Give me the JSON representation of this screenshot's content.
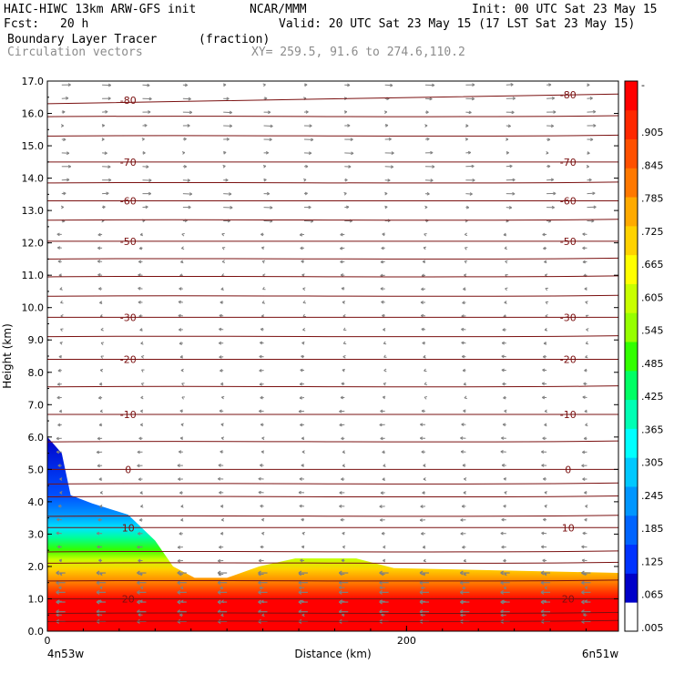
{
  "header": {
    "model": "HAIC-HIWC 13km ARW-GFS init",
    "org": "NCAR/MMM",
    "init": "Init: 00 UTC Sat 23 May 15",
    "fcst_label": "Fcst:",
    "fcst_value": "20 h",
    "valid": "Valid: 20 UTC Sat 23 May 15 (17 LST Sat 23 May 15)",
    "field": "Boundary Layer Tracer",
    "field_units": "(fraction)",
    "overlay": "Circulation vectors",
    "xy_range": "XY= 259.5, 91.6 to 274.6,110.2"
  },
  "colors": {
    "contour_line": "#7a1010",
    "vector": "#808080",
    "colorbar": [
      "#ffffff",
      "#0000c8",
      "#0032ff",
      "#0064ff",
      "#0096ff",
      "#00c8ff",
      "#00ffff",
      "#00ffb4",
      "#00ff64",
      "#32ff00",
      "#96ff00",
      "#c8ff00",
      "#ffff00",
      "#ffd200",
      "#ffaa00",
      "#ff7800",
      "#ff5000",
      "#ff2800",
      "#ff0000"
    ]
  },
  "chart_data": {
    "type": "heatmap",
    "title": "Boundary Layer Tracer",
    "units": "(fraction)",
    "xlabel": "Distance (km)",
    "ylabel": "Height (km)",
    "xlim": [
      0,
      318
    ],
    "ylim": [
      0.0,
      17.0
    ],
    "x_ticks": [
      0,
      200
    ],
    "x_end_labels": [
      "4n53w",
      "6n51w"
    ],
    "y_ticks": [
      "0.0",
      "1.0",
      "2.0",
      "3.0",
      "4.0",
      "5.0",
      "6.0",
      "7.0",
      "8.0",
      "9.0",
      "10.0",
      "11.0",
      "12.0",
      "13.0",
      "14.0",
      "15.0",
      "16.0",
      "17.0"
    ],
    "colorbar_labels": [
      ".005",
      ".065",
      ".125",
      ".185",
      ".245",
      ".305",
      ".365",
      ".425",
      ".485",
      ".545",
      ".605",
      ".665",
      ".725",
      ".785",
      ".845",
      ".905",
      "-"
    ],
    "tracer_top_boundary": [
      {
        "x": 0,
        "z": 6.0
      },
      {
        "x": 8,
        "z": 5.5
      },
      {
        "x": 13,
        "z": 4.2
      },
      {
        "x": 25,
        "z": 3.95
      },
      {
        "x": 45,
        "z": 3.6
      },
      {
        "x": 60,
        "z": 2.8
      },
      {
        "x": 70,
        "z": 2.0
      },
      {
        "x": 82,
        "z": 1.65
      },
      {
        "x": 100,
        "z": 1.65
      },
      {
        "x": 118,
        "z": 2.0
      },
      {
        "x": 138,
        "z": 2.25
      },
      {
        "x": 172,
        "z": 2.25
      },
      {
        "x": 193,
        "z": 1.95
      },
      {
        "x": 318,
        "z": 1.8
      }
    ],
    "temperature_contours": [
      {
        "label": "-80",
        "z": 16.45,
        "slope": 0.3
      },
      {
        "label": "-70",
        "z": 14.5
      },
      {
        "label": "-60",
        "z": 13.3
      },
      {
        "label": "-50",
        "z": 12.05
      },
      {
        "label": "-30",
        "z": 9.7
      },
      {
        "label": "-20",
        "z": 8.4
      },
      {
        "label": "-10",
        "z": 6.7
      },
      {
        "label": "0",
        "z": 5.0
      },
      {
        "label": "10",
        "z": 3.2
      },
      {
        "label": "20",
        "z": 1.0
      }
    ]
  }
}
